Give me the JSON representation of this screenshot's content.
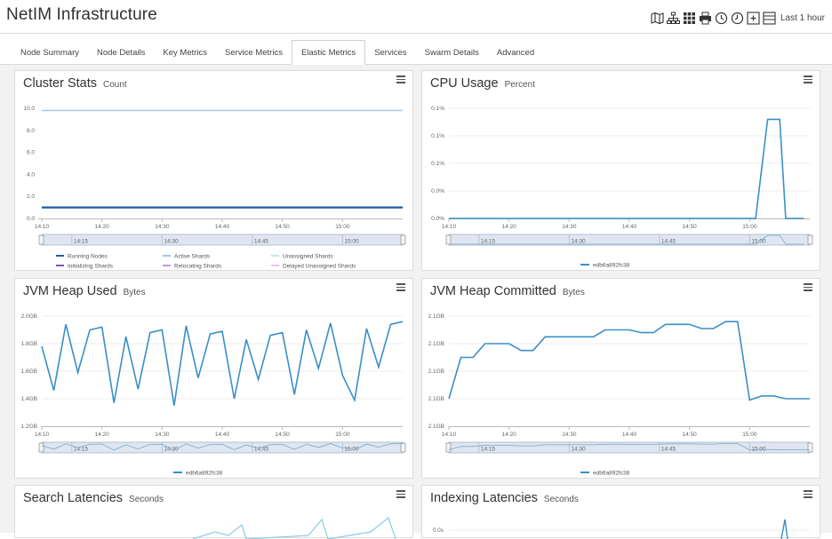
{
  "app": {
    "title": "NetIM Infrastructure"
  },
  "toolbar": {
    "icons": [
      "map-icon",
      "topology-icon",
      "grid-icon",
      "print-icon",
      "history-icon",
      "clock-icon",
      "expand-icon",
      "collapse-icon"
    ],
    "time_range": "Last 1 hour"
  },
  "tabs": [
    {
      "label": "Node Summary",
      "active": false
    },
    {
      "label": "Node Details",
      "active": false
    },
    {
      "label": "Key Metrics",
      "active": false
    },
    {
      "label": "Service Metrics",
      "active": false
    },
    {
      "label": "Elastic Metrics",
      "active": true
    },
    {
      "label": "Services",
      "active": false
    },
    {
      "label": "Swarm Details",
      "active": false
    },
    {
      "label": "Advanced",
      "active": false
    }
  ],
  "colors": {
    "series_primary": "#3a8fc6",
    "navigator_fill": "#dfe6ef",
    "navigator_border": "#b3c3d6",
    "grid_line": "#eeeeee",
    "running_nodes": "#1f5aa6",
    "active_shards": "#9ec9e8",
    "unassigned_shards": "#bfe3ef",
    "initializing_shards": "#8a4fb5",
    "relocating_shards": "#c59ad8",
    "delayed_unassigned_shards": "#e6c6e6"
  },
  "panels": {
    "cluster_stats": {
      "title": "Cluster Stats",
      "unit": "Count",
      "legend": [
        "Running Nodes",
        "Active Shards",
        "Unassigned Shards",
        "Initializing Shards",
        "Relocating Shards",
        "Delayed Unassigned Shards"
      ]
    },
    "cpu_usage": {
      "title": "CPU Usage",
      "unit": "Percent",
      "legend": [
        "edb6a892fc38"
      ]
    },
    "jvm_heap_used": {
      "title": "JVM Heap Used",
      "unit": "Bytes",
      "legend": [
        "edb6a892fc38"
      ]
    },
    "jvm_heap_committed": {
      "title": "JVM Heap Committed",
      "unit": "Bytes",
      "legend": [
        "edb6a892fc38"
      ]
    },
    "search_latencies": {
      "title": "Search Latencies",
      "unit": "Seconds"
    },
    "indexing_latencies": {
      "title": "Indexing Latencies",
      "unit": "Seconds"
    }
  },
  "chart_data": [
    {
      "id": "cluster_stats",
      "type": "line",
      "x": [
        "14:10",
        "14:11",
        "14:12",
        "14:13",
        "14:14",
        "14:15",
        "14:16",
        "14:17",
        "14:18",
        "14:19",
        "14:20",
        "14:21",
        "14:22",
        "14:23",
        "14:24",
        "14:25",
        "14:26",
        "14:27",
        "14:28",
        "14:29",
        "14:30",
        "14:31",
        "14:32",
        "14:33",
        "14:34",
        "14:35",
        "14:36",
        "14:37",
        "14:38",
        "14:39",
        "14:40",
        "14:41",
        "14:42",
        "14:43",
        "14:44",
        "14:45",
        "14:46",
        "14:47",
        "14:48",
        "14:49",
        "14:50",
        "14:51",
        "14:52",
        "14:53",
        "14:54",
        "14:55",
        "14:56",
        "14:57",
        "14:58",
        "14:59",
        "15:00",
        "15:01",
        "15:02",
        "15:03",
        "15:04",
        "15:05",
        "15:06",
        "15:07",
        "15:08",
        "15:09"
      ],
      "x_ticks": [
        "14:10",
        "14:20",
        "14:30",
        "14:40",
        "14:50",
        "15:00"
      ],
      "ylim": [
        0,
        10
      ],
      "y_ticks": [
        "0.0",
        "2.0",
        "4.0",
        "6.0",
        "8.0",
        "10.0"
      ],
      "series": [
        {
          "name": "Running Nodes",
          "constant": 1.0
        },
        {
          "name": "Active Shards",
          "constant": 9.8
        },
        {
          "name": "Unassigned Shards",
          "constant": 0
        },
        {
          "name": "Initializing Shards",
          "constant": 0
        },
        {
          "name": "Relocating Shards",
          "constant": 0
        },
        {
          "name": "Delayed Unassigned Shards",
          "constant": 0
        }
      ],
      "navigator_ticks": [
        "14:15",
        "14:30",
        "14:45",
        "15:00"
      ]
    },
    {
      "id": "cpu_usage",
      "type": "line",
      "x_ticks": [
        "14:10",
        "14:20",
        "14:30",
        "14:40",
        "14:50",
        "15:00"
      ],
      "y_ticks": [
        "0.0%",
        "0.0%",
        "0.1%",
        "0.1%",
        "0.1%"
      ],
      "series": [
        {
          "name": "edb6a892fc38",
          "x_minutes": [
            0,
            10,
            20,
            30,
            40,
            50,
            51,
            53,
            55,
            56,
            58,
            59
          ],
          "values": [
            0,
            0,
            0,
            0,
            0,
            0,
            0,
            0.1,
            0.1,
            0,
            0,
            0
          ]
        }
      ],
      "navigator_ticks": [
        "14:15",
        "14:30",
        "14:45",
        "15:00"
      ]
    },
    {
      "id": "jvm_heap_used",
      "type": "line",
      "x_ticks": [
        "14:10",
        "14:20",
        "14:30",
        "14:40",
        "14:50",
        "15:00"
      ],
      "y_ticks": [
        "1.2GB",
        "1.4GB",
        "1.6GB",
        "1.8GB",
        "2.0GB"
      ],
      "series": [
        {
          "name": "edb6a892fc38",
          "x_minutes": [
            0,
            2,
            4,
            6,
            8,
            10,
            12,
            14,
            16,
            18,
            20,
            22,
            24,
            26,
            28,
            30,
            32,
            34,
            36,
            38,
            40,
            42,
            44,
            46,
            48,
            50,
            52,
            54,
            56,
            58,
            60
          ],
          "values": [
            1.78,
            1.46,
            1.94,
            1.59,
            1.9,
            1.92,
            1.37,
            1.85,
            1.47,
            1.88,
            1.9,
            1.35,
            1.93,
            1.55,
            1.87,
            1.89,
            1.4,
            1.83,
            1.54,
            1.86,
            1.88,
            1.43,
            1.9,
            1.62,
            1.95,
            1.57,
            1.39,
            1.91,
            1.63,
            1.94,
            1.96
          ]
        }
      ],
      "navigator_ticks": [
        "14:15",
        "14:30",
        "14:45",
        "15:00"
      ]
    },
    {
      "id": "jvm_heap_committed",
      "type": "line",
      "x_ticks": [
        "14:10",
        "14:20",
        "14:30",
        "14:40",
        "14:50",
        "15:00"
      ],
      "y_ticks": [
        "2.1GB",
        "2.1GB",
        "2.1GB",
        "2.1GB",
        "2.1GB"
      ],
      "series": [
        {
          "name": "edb6a892fc38",
          "x_minutes": [
            0,
            2,
            4,
            6,
            8,
            10,
            12,
            14,
            16,
            18,
            20,
            22,
            24,
            26,
            28,
            30,
            32,
            34,
            36,
            38,
            40,
            42,
            44,
            46,
            48,
            50,
            52,
            54,
            56,
            58,
            60
          ],
          "values": [
            2.08,
            2.11,
            2.11,
            2.12,
            2.12,
            2.12,
            2.115,
            2.115,
            2.125,
            2.125,
            2.125,
            2.125,
            2.125,
            2.13,
            2.13,
            2.13,
            2.128,
            2.128,
            2.134,
            2.134,
            2.134,
            2.131,
            2.131,
            2.136,
            2.136,
            2.079,
            2.082,
            2.082,
            2.08,
            2.08,
            2.08
          ]
        }
      ],
      "navigator_ticks": [
        "14:15",
        "14:30",
        "14:45",
        "15:00"
      ]
    },
    {
      "id": "search_latencies",
      "type": "line",
      "series": []
    },
    {
      "id": "indexing_latencies",
      "type": "line",
      "y_ticks": [
        "0.0s"
      ],
      "series": []
    }
  ]
}
